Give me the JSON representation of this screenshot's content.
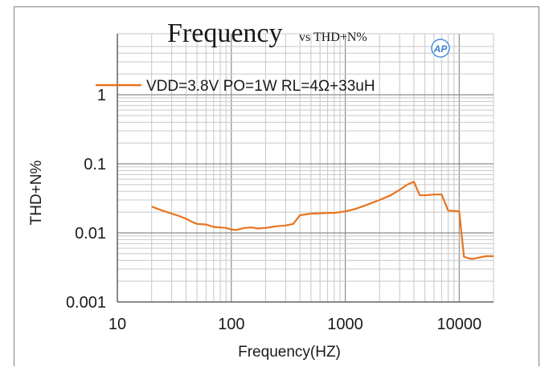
{
  "chart_data": {
    "type": "line",
    "title": "Frequency",
    "subtitle": "vs THD+N%",
    "xlabel": "Frequency(HZ)",
    "ylabel": "THD+N%",
    "x_scale": "log",
    "y_scale": "log",
    "xlim": [
      10,
      20000
    ],
    "ylim": [
      0.001,
      5
    ],
    "x_ticks": [
      10,
      100,
      1000,
      10000
    ],
    "x_tick_labels": [
      "10",
      "100",
      "1000",
      "10000"
    ],
    "y_ticks": [
      0.001,
      0.01,
      0.1,
      1
    ],
    "y_tick_labels": [
      "0.001",
      "0.01",
      "0.1",
      "1"
    ],
    "grid": true,
    "legend_position": "top",
    "series_color": "#e8731f",
    "series": [
      {
        "name": "VDD=3.8V PO=1W RL=4Ω+33uH",
        "x": [
          20,
          25,
          30,
          35,
          40,
          45,
          50,
          60,
          70,
          80,
          90,
          100,
          110,
          130,
          150,
          170,
          200,
          250,
          300,
          350,
          400,
          500,
          600,
          700,
          800,
          1000,
          1200,
          1500,
          2000,
          2500,
          3000,
          3500,
          4000,
          4500,
          5000,
          6000,
          7000,
          8000,
          9000,
          10000,
          11000,
          12000,
          13000,
          15000,
          17000,
          20000
        ],
        "y": [
          0.024,
          0.021,
          0.019,
          0.0175,
          0.016,
          0.0145,
          0.0135,
          0.0132,
          0.0122,
          0.012,
          0.0118,
          0.0112,
          0.011,
          0.0118,
          0.012,
          0.0116,
          0.0118,
          0.0125,
          0.0128,
          0.0135,
          0.018,
          0.019,
          0.0192,
          0.0195,
          0.0195,
          0.0205,
          0.022,
          0.025,
          0.03,
          0.035,
          0.042,
          0.05,
          0.055,
          0.035,
          0.035,
          0.036,
          0.036,
          0.021,
          0.0208,
          0.0205,
          0.0045,
          0.0043,
          0.0042,
          0.0044,
          0.0046,
          0.0046
        ]
      }
    ]
  },
  "badge": {
    "text": "AP",
    "name": "audio-precision-logo"
  }
}
